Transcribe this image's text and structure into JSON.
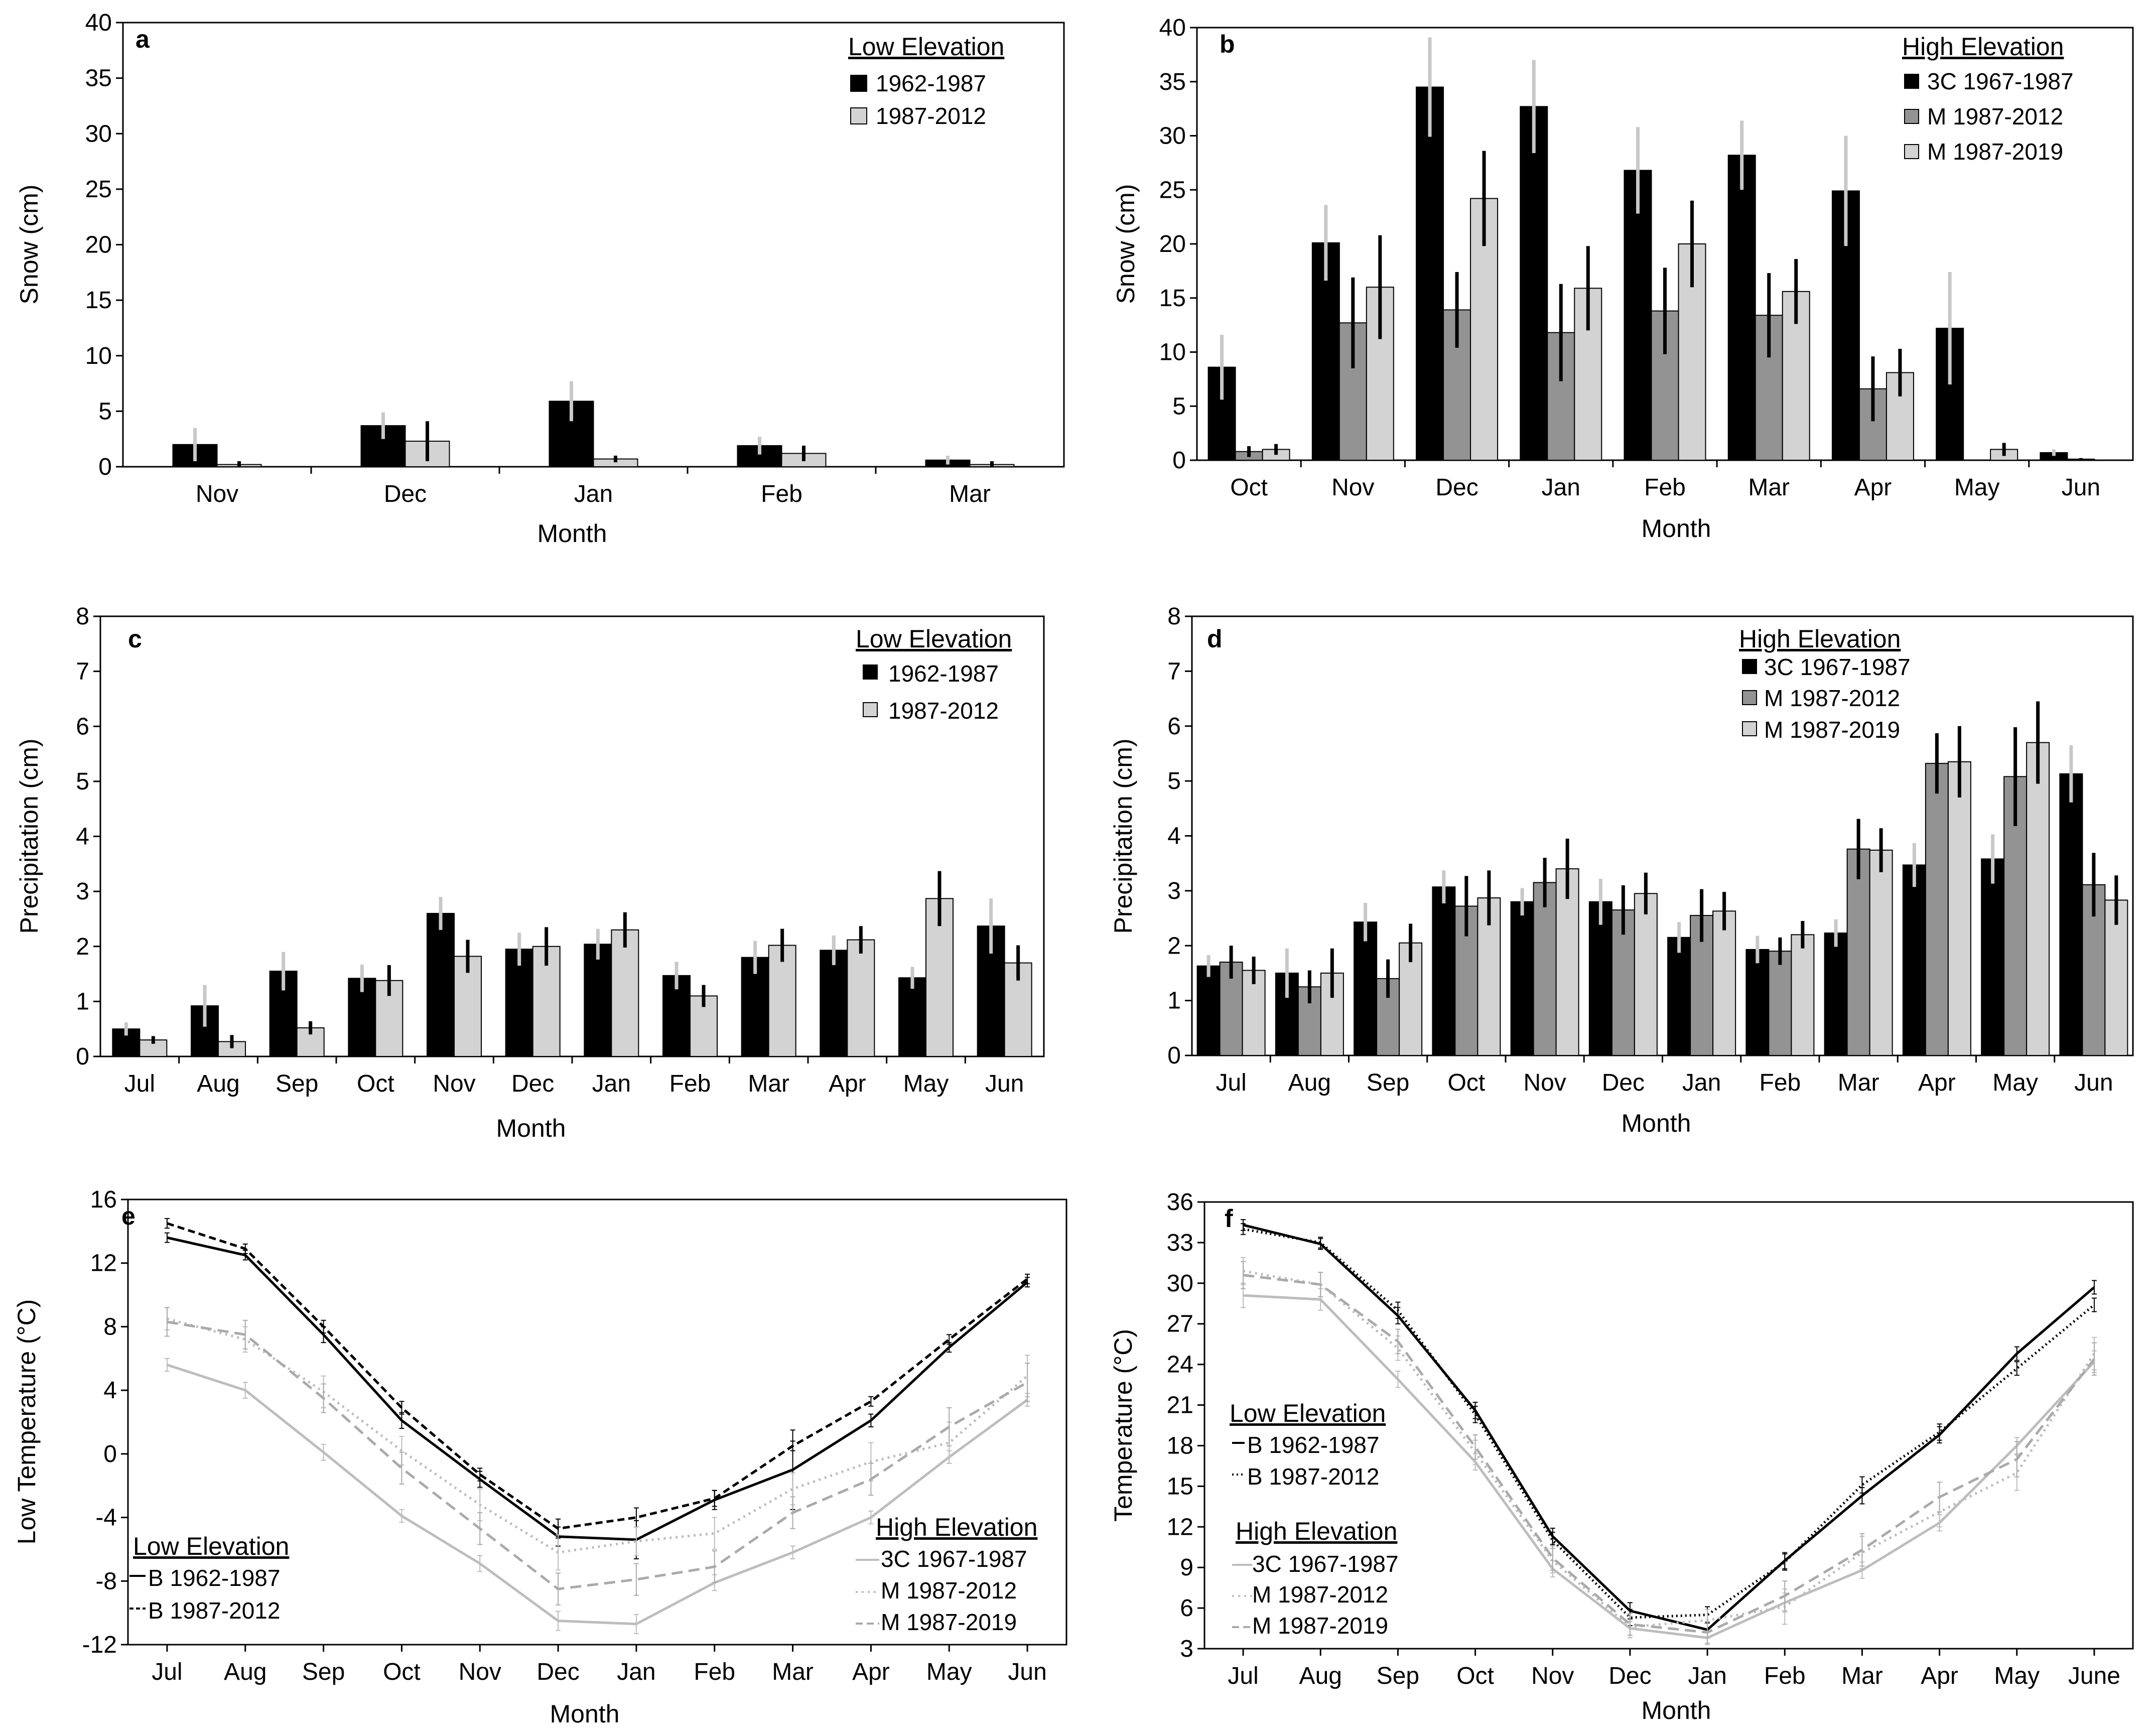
{
  "colors": {
    "black": "#000000",
    "dark_gray": "#939393",
    "light_gray": "#d3d3d3",
    "err_light": "#c8c8c8",
    "line_black": "#000000",
    "line_gray": "#bdbdbd",
    "line_gray2": "#aaaaaa"
  },
  "chart_data": [
    {
      "id": "a",
      "type": "bar",
      "panel_letter": "a",
      "ylabel": "Snow (cm)",
      "xlabel": "Month",
      "ylim": [
        0,
        40
      ],
      "yticks": [
        0,
        5,
        10,
        15,
        20,
        25,
        30,
        35,
        40
      ],
      "categories": [
        "Nov",
        "Dec",
        "Jan",
        "Feb",
        "Mar"
      ],
      "legend_title": "Low Elevation",
      "series": [
        {
          "name": "1962-1987",
          "color": "#000000",
          "err_color": "#c8c8c8",
          "values": [
            2.0,
            3.7,
            5.9,
            1.9,
            0.6
          ],
          "err": [
            1.5,
            1.2,
            1.8,
            0.8,
            0.4
          ]
        },
        {
          "name": "1987-2012",
          "color": "#d3d3d3",
          "err_color": "#000000",
          "values": [
            0.2,
            2.3,
            0.7,
            1.2,
            0.2
          ],
          "err": [
            0.3,
            1.8,
            0.3,
            0.7,
            0.3
          ]
        }
      ]
    },
    {
      "id": "b",
      "type": "bar",
      "panel_letter": "b",
      "ylabel": "Snow (cm)",
      "xlabel": "Month",
      "ylim": [
        0,
        40
      ],
      "yticks": [
        0,
        5,
        10,
        15,
        20,
        25,
        30,
        35,
        40
      ],
      "categories": [
        "Oct",
        "Nov",
        "Dec",
        "Jan",
        "Feb",
        "Mar",
        "Apr",
        "May",
        "Jun"
      ],
      "legend_title": "High Elevation",
      "series": [
        {
          "name": "3C 1967-1987",
          "color": "#000000",
          "err_color": "#c8c8c8",
          "values": [
            8.6,
            20.1,
            34.5,
            32.7,
            26.8,
            28.2,
            24.9,
            12.2,
            0.7
          ],
          "err": [
            3.0,
            3.5,
            4.6,
            4.3,
            4.0,
            3.2,
            5.1,
            5.2,
            0.3
          ]
        },
        {
          "name": "M 1987-2012",
          "color": "#939393",
          "err_color": "#000000",
          "values": [
            0.8,
            12.7,
            13.9,
            11.8,
            13.8,
            13.4,
            6.6,
            0.0,
            0.1
          ],
          "err": [
            0.5,
            4.2,
            3.5,
            4.5,
            4.0,
            3.9,
            3.0,
            0.0,
            0.1
          ]
        },
        {
          "name": "M 1987-2019",
          "color": "#d3d3d3",
          "err_color": "#000000",
          "values": [
            1.0,
            16.0,
            24.2,
            15.9,
            20.0,
            15.6,
            8.1,
            1.0,
            0.0
          ],
          "err": [
            0.5,
            4.8,
            4.4,
            3.9,
            4.0,
            3.0,
            2.2,
            0.6,
            0.0
          ]
        }
      ]
    },
    {
      "id": "c",
      "type": "bar",
      "panel_letter": "c",
      "ylabel": "Precipitation (cm)",
      "xlabel": "Month",
      "ylim": [
        0,
        8
      ],
      "yticks": [
        0,
        1,
        2,
        3,
        4,
        5,
        6,
        7,
        8
      ],
      "categories": [
        "Jul",
        "Aug",
        "Sep",
        "Oct",
        "Nov",
        "Dec",
        "Jan",
        "Feb",
        "Mar",
        "Apr",
        "May",
        "Jun"
      ],
      "legend_title": "Low Elevation",
      "series": [
        {
          "name": "1962-1987",
          "color": "#000000",
          "err_color": "#c8c8c8",
          "values": [
            0.5,
            0.92,
            1.55,
            1.42,
            2.6,
            1.95,
            2.04,
            1.47,
            1.8,
            1.93,
            1.43,
            2.37
          ],
          "err": [
            0.12,
            0.38,
            0.35,
            0.25,
            0.3,
            0.3,
            0.28,
            0.25,
            0.3,
            0.27,
            0.2,
            0.5
          ]
        },
        {
          "name": "1987-2012",
          "color": "#d3d3d3",
          "err_color": "#000000",
          "values": [
            0.3,
            0.27,
            0.52,
            1.38,
            1.82,
            2.0,
            2.3,
            1.1,
            2.02,
            2.12,
            2.87,
            1.7
          ],
          "err": [
            0.07,
            0.12,
            0.12,
            0.28,
            0.3,
            0.35,
            0.32,
            0.2,
            0.3,
            0.25,
            0.5,
            0.32
          ]
        }
      ]
    },
    {
      "id": "d",
      "type": "bar",
      "panel_letter": "d",
      "ylabel": "Precipitation (cm)",
      "xlabel": "Month",
      "ylim": [
        0,
        8
      ],
      "yticks": [
        0,
        1,
        2,
        3,
        4,
        5,
        6,
        7,
        8
      ],
      "categories": [
        "Jul",
        "Aug",
        "Sep",
        "Oct",
        "Nov",
        "Dec",
        "Jan",
        "Feb",
        "Mar",
        "Apr",
        "May",
        "Jun"
      ],
      "legend_title": "High Elevation",
      "series": [
        {
          "name": "3C 1967-1987",
          "color": "#000000",
          "err_color": "#c8c8c8",
          "values": [
            1.63,
            1.5,
            2.43,
            3.07,
            2.8,
            2.8,
            2.15,
            1.93,
            2.23,
            3.47,
            3.58,
            5.13
          ],
          "err": [
            0.2,
            0.45,
            0.35,
            0.3,
            0.25,
            0.42,
            0.28,
            0.25,
            0.25,
            0.4,
            0.45,
            0.52
          ]
        },
        {
          "name": "M 1987-2012",
          "color": "#939393",
          "err_color": "#000000",
          "values": [
            1.7,
            1.25,
            1.4,
            2.72,
            3.15,
            2.65,
            2.55,
            1.9,
            3.76,
            5.32,
            5.08,
            3.11
          ],
          "err": [
            0.3,
            0.3,
            0.35,
            0.55,
            0.45,
            0.45,
            0.48,
            0.25,
            0.55,
            0.55,
            0.9,
            0.58
          ]
        },
        {
          "name": "M 1987-2019",
          "color": "#d3d3d3",
          "err_color": "#000000",
          "values": [
            1.55,
            1.5,
            2.05,
            2.87,
            3.4,
            2.95,
            2.63,
            2.2,
            3.74,
            5.35,
            5.7,
            2.83
          ],
          "err": [
            0.25,
            0.45,
            0.35,
            0.5,
            0.55,
            0.38,
            0.35,
            0.25,
            0.4,
            0.65,
            0.75,
            0.45
          ]
        }
      ]
    },
    {
      "id": "e",
      "type": "line",
      "panel_letter": "e",
      "ylabel": "Low Temperature (°C)",
      "xlabel": "Month",
      "ylim": [
        -12,
        16
      ],
      "yticks": [
        -12,
        -8,
        -4,
        0,
        4,
        8,
        12,
        16
      ],
      "categories": [
        "Jul",
        "Aug",
        "Sep",
        "Oct",
        "Nov",
        "Dec",
        "Jan",
        "Feb",
        "Mar",
        "Apr",
        "May",
        "Jun"
      ],
      "legend_low_title": "Low Elevation",
      "legend_high_title": "High Elevation",
      "series": [
        {
          "name": "B 1962-1987",
          "group": "low",
          "color": "#000000",
          "dash": "",
          "values": [
            13.6,
            12.5,
            7.5,
            2.1,
            -1.6,
            -5.2,
            -5.4,
            -2.9,
            -1.0,
            2.1,
            6.7,
            10.8
          ],
          "err": [
            0.3,
            0.3,
            0.5,
            0.5,
            0.5,
            0.6,
            1.2,
            0.6,
            2.5,
            0.4,
            0.3,
            0.3
          ]
        },
        {
          "name": "B 1987-2012",
          "group": "low",
          "color": "#000000",
          "dash": "14,8",
          "values": [
            14.5,
            12.9,
            8.0,
            2.9,
            -1.3,
            -4.7,
            -4.0,
            -2.8,
            0.5,
            3.3,
            7.2,
            11.0
          ],
          "err": [
            0.3,
            0.3,
            0.4,
            0.4,
            0.4,
            0.6,
            0.6,
            0.5,
            0.3,
            0.3,
            0.3,
            0.3
          ]
        },
        {
          "name": "3C 1967-1987",
          "group": "high",
          "color": "#bdbdbd",
          "dash": "",
          "values": [
            5.6,
            4.0,
            0.1,
            -3.9,
            -6.9,
            -10.5,
            -10.7,
            -8.1,
            -6.2,
            -4.0,
            -0.2,
            3.4
          ],
          "err": [
            0.4,
            0.5,
            0.5,
            0.4,
            0.5,
            0.6,
            0.6,
            0.5,
            0.4,
            0.4,
            0.4,
            0.4
          ]
        },
        {
          "name": "M 1987-2012",
          "group": "high",
          "color": "#bdbdbd",
          "dash": "4,8",
          "values": [
            8.5,
            7.2,
            3.9,
            0.2,
            -3.2,
            -6.2,
            -5.5,
            -5.0,
            -2.2,
            -0.5,
            0.7,
            4.9
          ],
          "err": [
            0.7,
            0.8,
            1.0,
            0.9,
            1.0,
            1.1,
            0.9,
            1.0,
            1.0,
            1.2,
            1.3,
            1.3
          ]
        },
        {
          "name": "M 1987-2019",
          "group": "high",
          "color": "#aaaaaa",
          "dash": "22,12",
          "values": [
            8.3,
            7.5,
            3.5,
            -0.9,
            -4.7,
            -8.5,
            -7.9,
            -7.1,
            -3.7,
            -1.6,
            1.7,
            4.5
          ],
          "err": [
            0.9,
            0.9,
            0.9,
            1.0,
            1.0,
            1.0,
            1.0,
            1.0,
            1.0,
            1.0,
            1.2,
            1.2
          ]
        }
      ]
    },
    {
      "id": "f",
      "type": "line",
      "panel_letter": "f",
      "ylabel": "Temperature  (°C)",
      "xlabel": "Month",
      "ylim": [
        3,
        36
      ],
      "yticks": [
        3,
        6,
        9,
        12,
        15,
        18,
        21,
        24,
        27,
        30,
        33,
        36
      ],
      "categories": [
        "Jul",
        "Aug",
        "Sep",
        "Oct",
        "Nov",
        "Dec",
        "Jan",
        "Feb",
        "Mar",
        "Apr",
        "May",
        "June"
      ],
      "legend_low_title": "Low Elevation",
      "legend_high_title": "High Elevation",
      "series": [
        {
          "name": "B 1962-1987",
          "group": "low",
          "color": "#000000",
          "dash": "",
          "values": [
            34.3,
            32.9,
            27.6,
            20.6,
            11.3,
            5.8,
            4.4,
            9.5,
            14.3,
            18.8,
            24.8,
            29.7
          ],
          "err": [
            0.4,
            0.4,
            0.6,
            0.6,
            0.6,
            0.6,
            0.6,
            0.6,
            0.6,
            0.6,
            0.5,
            0.5
          ]
        },
        {
          "name": "B 1987-2012",
          "group": "low",
          "color": "#000000",
          "dash": "3,6",
          "values": [
            34.0,
            33.0,
            28.0,
            20.3,
            11.0,
            5.3,
            5.5,
            9.4,
            15.1,
            19.0,
            23.7,
            28.4
          ],
          "err": [
            0.4,
            0.4,
            0.6,
            0.6,
            0.6,
            0.6,
            0.6,
            0.6,
            0.6,
            0.6,
            0.5,
            0.5
          ]
        },
        {
          "name": "3C 1967-1987",
          "group": "high",
          "color": "#bdbdbd",
          "dash": "",
          "values": [
            29.1,
            28.8,
            22.9,
            16.8,
            8.9,
            4.5,
            3.8,
            6.4,
            8.8,
            12.3,
            18.0,
            24.2
          ],
          "err": [
            0.9,
            0.8,
            0.6,
            0.6,
            0.6,
            0.5,
            0.5,
            0.7,
            0.6,
            0.6,
            0.6,
            0.8
          ]
        },
        {
          "name": "M 1987-2012",
          "group": "high",
          "color": "#bdbdbd",
          "dash": "4,8",
          "values": [
            30.9,
            29.9,
            25.2,
            17.5,
            9.5,
            4.6,
            5.1,
            6.1,
            10.1,
            13.1,
            16.0,
            24.8
          ],
          "err": [
            1.0,
            0.9,
            0.9,
            0.9,
            0.9,
            0.8,
            0.8,
            1.3,
            1.2,
            1.1,
            1.3,
            1.2
          ]
        },
        {
          "name": "M 1987-2019",
          "group": "high",
          "color": "#aaaaaa",
          "dash": "22,12",
          "values": [
            30.6,
            29.9,
            25.7,
            17.9,
            9.7,
            4.8,
            4.2,
            6.9,
            10.3,
            14.2,
            17.0,
            24.4
          ],
          "err": [
            1.0,
            0.9,
            0.9,
            0.9,
            0.9,
            0.8,
            0.8,
            1.1,
            1.2,
            1.1,
            1.3,
            1.2
          ]
        }
      ]
    }
  ]
}
